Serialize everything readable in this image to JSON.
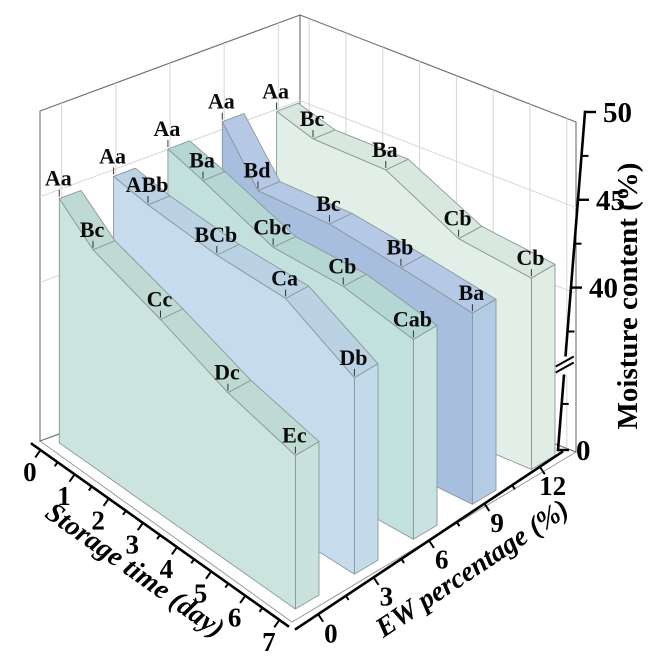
{
  "figure": {
    "background": "#ffffff",
    "type_note": "3D waterfall/ribbon plot"
  },
  "chart_data": {
    "type": "3d-ribbon-waterfall",
    "title": "",
    "x_axis": {
      "label": "Storage time (day)",
      "tick_labels": [
        "0",
        "1",
        "2",
        "3",
        "4",
        "5",
        "6",
        "7"
      ],
      "tick_values": [
        0,
        1,
        2,
        3,
        4,
        5,
        6,
        7
      ],
      "minor_ticks": [
        0.5,
        1.5,
        2.5,
        3.5,
        4.5,
        5.5,
        6.5
      ],
      "range": [
        0,
        7
      ]
    },
    "y_axis": {
      "label": "EW percentage (%)",
      "tick_labels": [
        "0",
        "3",
        "6",
        "9",
        "12"
      ],
      "tick_values": [
        0,
        3,
        6,
        9,
        12
      ],
      "minor_ticks": [
        1.5,
        4.5,
        7.5,
        10.5
      ],
      "range": [
        0,
        12
      ]
    },
    "z_axis": {
      "label": "Moisture content (%)",
      "tick_labels": [
        "0",
        "40",
        "45",
        "50"
      ],
      "tick_values": [
        0,
        40,
        45,
        50
      ],
      "minor_tick_values": [
        18,
        37.5,
        42.5,
        47.5
      ],
      "range": [
        0,
        50
      ],
      "axis_break_between": [
        "0",
        "40"
      ],
      "grid_values": [
        40,
        45
      ]
    },
    "days_measured": [
      0,
      1,
      3,
      5,
      7
    ],
    "series": [
      {
        "name": "EW 0%",
        "ew": 0,
        "colors": {
          "face": "#cbe4de",
          "top": "#bedad3",
          "end": "#c9e2db"
        },
        "values": [
          45.0,
          43.4,
          42.1,
          40.6,
          39.7
        ],
        "labels": [
          "Aa",
          "Bc",
          "Cc",
          "Dc",
          "Ec"
        ]
      },
      {
        "name": "EW 3%",
        "ew": 3,
        "colors": {
          "face": "#c6dcec",
          "top": "#bad2e4",
          "end": "#c3daea"
        },
        "values": [
          45.1,
          44.7,
          44.3,
          44.3,
          42.2
        ],
        "labels": [
          "Aa",
          "ABb",
          "BCb",
          "Ca",
          "Db"
        ]
      },
      {
        "name": "EW 6%",
        "ew": 6,
        "colors": {
          "face": "#c2e0de",
          "top": "#b5d7d3",
          "end": "#c8e3e0"
        },
        "values": [
          45.5,
          44.8,
          43.2,
          43.2,
          42.4
        ],
        "labels": [
          "Aa",
          "Ba",
          "Cbc",
          "Cb",
          "Cab"
        ]
      },
      {
        "name": "EW 9%",
        "ew": 9,
        "colors": {
          "face": "#a7bedf",
          "top": "#b5c8e5",
          "end": "#b3cbe4"
        },
        "values": [
          45.9,
          42.9,
          43.0,
          42.5,
          41.9
        ],
        "labels": [
          "Aa",
          "Bd",
          "Bc",
          "Bb",
          "Ba"
        ]
      },
      {
        "name": "EW 12%",
        "ew": 12,
        "colors": {
          "face": "#e2efe8",
          "top": "#d8e8df",
          "end": "#e0ede5"
        },
        "values": [
          45.3,
          44.6,
          44.6,
          42.4,
          41.9
        ],
        "labels": [
          "Aa",
          "Bc",
          "Ba",
          "Cb",
          "Cb"
        ]
      }
    ],
    "style": {
      "grid_color": "#d6d6d6",
      "wall_border_color": "#6e6e6e",
      "slab_edge_color": "#8c9898",
      "axis_color": "#000000",
      "label_color": "#0a0a0a"
    }
  }
}
